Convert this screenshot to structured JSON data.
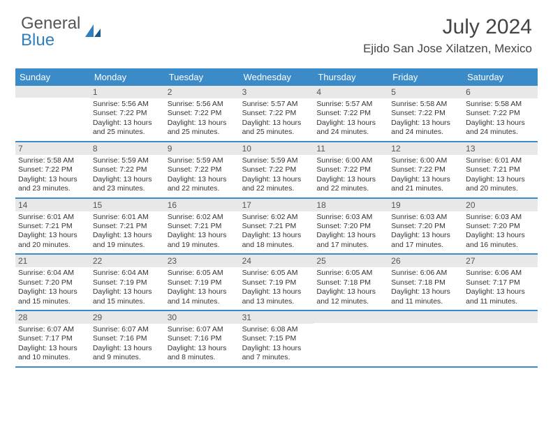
{
  "logo": {
    "general": "General",
    "blue": "Blue"
  },
  "title": "July 2024",
  "location": "Ejido San Jose Xilatzen, Mexico",
  "colors": {
    "header_bg": "#3b8bc9",
    "daynum_bg": "#e8e8e8",
    "border": "#3b8bc9",
    "text": "#333333",
    "title": "#444444"
  },
  "weekdays": [
    "Sunday",
    "Monday",
    "Tuesday",
    "Wednesday",
    "Thursday",
    "Friday",
    "Saturday"
  ],
  "weeks": [
    {
      "days": [
        {
          "n": "",
          "sr": "",
          "ss": "",
          "dl": ""
        },
        {
          "n": "1",
          "sr": "Sunrise: 5:56 AM",
          "ss": "Sunset: 7:22 PM",
          "dl": "Daylight: 13 hours and 25 minutes."
        },
        {
          "n": "2",
          "sr": "Sunrise: 5:56 AM",
          "ss": "Sunset: 7:22 PM",
          "dl": "Daylight: 13 hours and 25 minutes."
        },
        {
          "n": "3",
          "sr": "Sunrise: 5:57 AM",
          "ss": "Sunset: 7:22 PM",
          "dl": "Daylight: 13 hours and 25 minutes."
        },
        {
          "n": "4",
          "sr": "Sunrise: 5:57 AM",
          "ss": "Sunset: 7:22 PM",
          "dl": "Daylight: 13 hours and 24 minutes."
        },
        {
          "n": "5",
          "sr": "Sunrise: 5:58 AM",
          "ss": "Sunset: 7:22 PM",
          "dl": "Daylight: 13 hours and 24 minutes."
        },
        {
          "n": "6",
          "sr": "Sunrise: 5:58 AM",
          "ss": "Sunset: 7:22 PM",
          "dl": "Daylight: 13 hours and 24 minutes."
        }
      ]
    },
    {
      "days": [
        {
          "n": "7",
          "sr": "Sunrise: 5:58 AM",
          "ss": "Sunset: 7:22 PM",
          "dl": "Daylight: 13 hours and 23 minutes."
        },
        {
          "n": "8",
          "sr": "Sunrise: 5:59 AM",
          "ss": "Sunset: 7:22 PM",
          "dl": "Daylight: 13 hours and 23 minutes."
        },
        {
          "n": "9",
          "sr": "Sunrise: 5:59 AM",
          "ss": "Sunset: 7:22 PM",
          "dl": "Daylight: 13 hours and 22 minutes."
        },
        {
          "n": "10",
          "sr": "Sunrise: 5:59 AM",
          "ss": "Sunset: 7:22 PM",
          "dl": "Daylight: 13 hours and 22 minutes."
        },
        {
          "n": "11",
          "sr": "Sunrise: 6:00 AM",
          "ss": "Sunset: 7:22 PM",
          "dl": "Daylight: 13 hours and 22 minutes."
        },
        {
          "n": "12",
          "sr": "Sunrise: 6:00 AM",
          "ss": "Sunset: 7:22 PM",
          "dl": "Daylight: 13 hours and 21 minutes."
        },
        {
          "n": "13",
          "sr": "Sunrise: 6:01 AM",
          "ss": "Sunset: 7:21 PM",
          "dl": "Daylight: 13 hours and 20 minutes."
        }
      ]
    },
    {
      "days": [
        {
          "n": "14",
          "sr": "Sunrise: 6:01 AM",
          "ss": "Sunset: 7:21 PM",
          "dl": "Daylight: 13 hours and 20 minutes."
        },
        {
          "n": "15",
          "sr": "Sunrise: 6:01 AM",
          "ss": "Sunset: 7:21 PM",
          "dl": "Daylight: 13 hours and 19 minutes."
        },
        {
          "n": "16",
          "sr": "Sunrise: 6:02 AM",
          "ss": "Sunset: 7:21 PM",
          "dl": "Daylight: 13 hours and 19 minutes."
        },
        {
          "n": "17",
          "sr": "Sunrise: 6:02 AM",
          "ss": "Sunset: 7:21 PM",
          "dl": "Daylight: 13 hours and 18 minutes."
        },
        {
          "n": "18",
          "sr": "Sunrise: 6:03 AM",
          "ss": "Sunset: 7:20 PM",
          "dl": "Daylight: 13 hours and 17 minutes."
        },
        {
          "n": "19",
          "sr": "Sunrise: 6:03 AM",
          "ss": "Sunset: 7:20 PM",
          "dl": "Daylight: 13 hours and 17 minutes."
        },
        {
          "n": "20",
          "sr": "Sunrise: 6:03 AM",
          "ss": "Sunset: 7:20 PM",
          "dl": "Daylight: 13 hours and 16 minutes."
        }
      ]
    },
    {
      "days": [
        {
          "n": "21",
          "sr": "Sunrise: 6:04 AM",
          "ss": "Sunset: 7:20 PM",
          "dl": "Daylight: 13 hours and 15 minutes."
        },
        {
          "n": "22",
          "sr": "Sunrise: 6:04 AM",
          "ss": "Sunset: 7:19 PM",
          "dl": "Daylight: 13 hours and 15 minutes."
        },
        {
          "n": "23",
          "sr": "Sunrise: 6:05 AM",
          "ss": "Sunset: 7:19 PM",
          "dl": "Daylight: 13 hours and 14 minutes."
        },
        {
          "n": "24",
          "sr": "Sunrise: 6:05 AM",
          "ss": "Sunset: 7:19 PM",
          "dl": "Daylight: 13 hours and 13 minutes."
        },
        {
          "n": "25",
          "sr": "Sunrise: 6:05 AM",
          "ss": "Sunset: 7:18 PM",
          "dl": "Daylight: 13 hours and 12 minutes."
        },
        {
          "n": "26",
          "sr": "Sunrise: 6:06 AM",
          "ss": "Sunset: 7:18 PM",
          "dl": "Daylight: 13 hours and 11 minutes."
        },
        {
          "n": "27",
          "sr": "Sunrise: 6:06 AM",
          "ss": "Sunset: 7:17 PM",
          "dl": "Daylight: 13 hours and 11 minutes."
        }
      ]
    },
    {
      "days": [
        {
          "n": "28",
          "sr": "Sunrise: 6:07 AM",
          "ss": "Sunset: 7:17 PM",
          "dl": "Daylight: 13 hours and 10 minutes."
        },
        {
          "n": "29",
          "sr": "Sunrise: 6:07 AM",
          "ss": "Sunset: 7:16 PM",
          "dl": "Daylight: 13 hours and 9 minutes."
        },
        {
          "n": "30",
          "sr": "Sunrise: 6:07 AM",
          "ss": "Sunset: 7:16 PM",
          "dl": "Daylight: 13 hours and 8 minutes."
        },
        {
          "n": "31",
          "sr": "Sunrise: 6:08 AM",
          "ss": "Sunset: 7:15 PM",
          "dl": "Daylight: 13 hours and 7 minutes."
        },
        {
          "n": "",
          "sr": "",
          "ss": "",
          "dl": ""
        },
        {
          "n": "",
          "sr": "",
          "ss": "",
          "dl": ""
        },
        {
          "n": "",
          "sr": "",
          "ss": "",
          "dl": ""
        }
      ]
    }
  ]
}
